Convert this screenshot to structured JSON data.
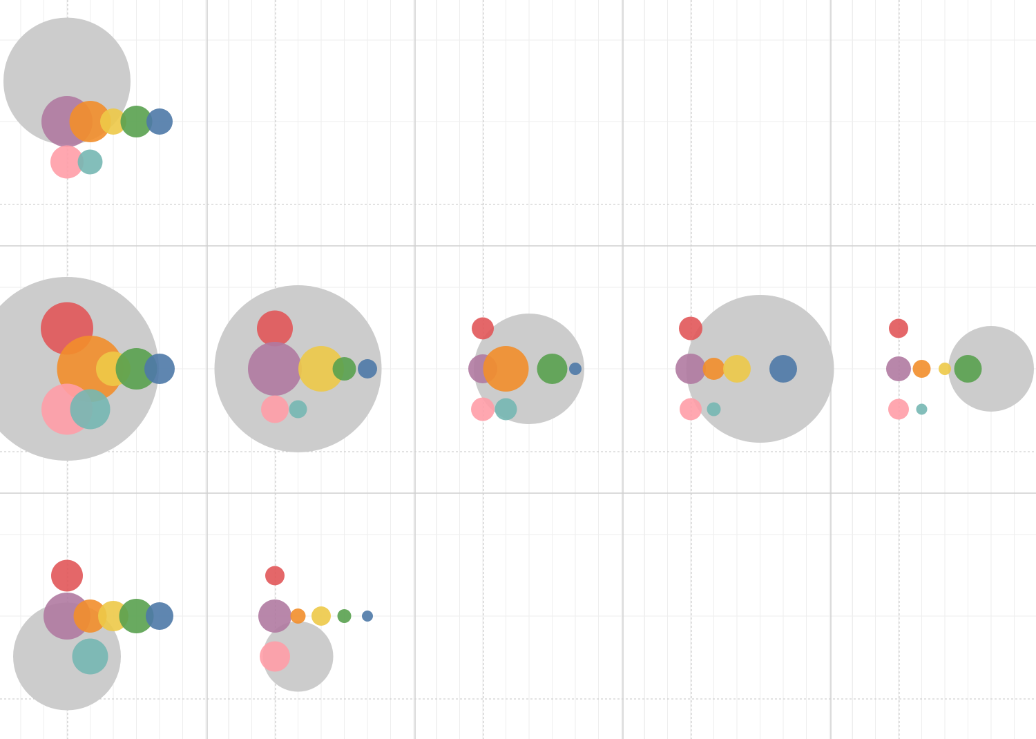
{
  "chart_data": {
    "type": "scatter",
    "subtype": "bubble-trellis",
    "grid_layout": {
      "rows": 3,
      "columns": 5
    },
    "colors": {
      "background": "#cccccc",
      "red": "#e15759",
      "purple": "#b07aa1",
      "orange": "#f28e2b",
      "yellow": "#edc948",
      "green": "#59a14f",
      "blue": "#4e79a7",
      "pink": "#ff9da7",
      "teal": "#76b7b2"
    },
    "series_order": [
      "background",
      "red",
      "purple",
      "orange",
      "yellow",
      "green",
      "blue",
      "pink",
      "teal"
    ],
    "panels": [
      {
        "row": 0,
        "col": 0,
        "bubbles": [
          {
            "series": "background",
            "x": 0,
            "y": 1,
            "size": 92
          },
          {
            "series": "purple",
            "x": 0,
            "y": 0,
            "size": 37
          },
          {
            "series": "orange",
            "x": 1,
            "y": 0,
            "size": 30
          },
          {
            "series": "yellow",
            "x": 2,
            "y": 0,
            "size": 19
          },
          {
            "series": "green",
            "x": 3,
            "y": 0,
            "size": 23
          },
          {
            "series": "blue",
            "x": 4,
            "y": 0,
            "size": 19
          },
          {
            "series": "pink",
            "x": 0,
            "y": -1,
            "size": 24
          },
          {
            "series": "teal",
            "x": 1,
            "y": -1,
            "size": 18
          }
        ]
      },
      {
        "row": 1,
        "col": 0,
        "bubbles": [
          {
            "series": "background",
            "x": 0,
            "y": 0,
            "size": 133
          },
          {
            "series": "red",
            "x": 0,
            "y": 1,
            "size": 38
          },
          {
            "series": "orange",
            "x": 1,
            "y": 0,
            "size": 48
          },
          {
            "series": "green",
            "x": 3,
            "y": 0,
            "size": 30
          },
          {
            "series": "blue",
            "x": 4,
            "y": 0,
            "size": 22
          },
          {
            "series": "yellow",
            "x": 2,
            "y": 0,
            "size": 25
          },
          {
            "series": "pink",
            "x": 0,
            "y": -1,
            "size": 37
          },
          {
            "series": "teal",
            "x": 1,
            "y": -1,
            "size": 29
          }
        ]
      },
      {
        "row": 1,
        "col": 1,
        "bubbles": [
          {
            "series": "background",
            "x": 1,
            "y": 0,
            "size": 121
          },
          {
            "series": "red",
            "x": 0,
            "y": 1,
            "size": 26
          },
          {
            "series": "purple",
            "x": 0,
            "y": 0,
            "size": 39
          },
          {
            "series": "green",
            "x": 3,
            "y": 0,
            "size": 17
          },
          {
            "series": "yellow",
            "x": 2,
            "y": 0,
            "size": 33
          },
          {
            "series": "blue",
            "x": 4,
            "y": 0,
            "size": 14
          },
          {
            "series": "pink",
            "x": 0,
            "y": -1,
            "size": 20
          },
          {
            "series": "teal",
            "x": 1,
            "y": -1,
            "size": 13
          }
        ]
      },
      {
        "row": 1,
        "col": 2,
        "bubbles": [
          {
            "series": "background",
            "x": 2,
            "y": 0,
            "size": 80
          },
          {
            "series": "red",
            "x": 0,
            "y": 1,
            "size": 16
          },
          {
            "series": "purple",
            "x": 0,
            "y": 0,
            "size": 21
          },
          {
            "series": "orange",
            "x": 1,
            "y": 0,
            "size": 33
          },
          {
            "series": "green",
            "x": 3,
            "y": 0,
            "size": 22
          },
          {
            "series": "blue",
            "x": 4,
            "y": 0,
            "size": 9
          },
          {
            "series": "pink",
            "x": 0,
            "y": -1,
            "size": 17
          },
          {
            "series": "teal",
            "x": 1,
            "y": -1,
            "size": 16
          }
        ]
      },
      {
        "row": 1,
        "col": 3,
        "bubbles": [
          {
            "series": "background",
            "x": 3,
            "y": 0,
            "size": 107
          },
          {
            "series": "red",
            "x": 0,
            "y": 1,
            "size": 17
          },
          {
            "series": "purple",
            "x": 0,
            "y": 0,
            "size": 22
          },
          {
            "series": "orange",
            "x": 1,
            "y": 0,
            "size": 16
          },
          {
            "series": "yellow",
            "x": 2,
            "y": 0,
            "size": 20
          },
          {
            "series": "blue",
            "x": 4,
            "y": 0,
            "size": 20
          },
          {
            "series": "pink",
            "x": 0,
            "y": -1,
            "size": 16
          },
          {
            "series": "teal",
            "x": 1,
            "y": -1,
            "size": 10
          }
        ]
      },
      {
        "row": 1,
        "col": 4,
        "bubbles": [
          {
            "series": "background",
            "x": 4,
            "y": 0,
            "size": 62
          },
          {
            "series": "red",
            "x": 0,
            "y": 1,
            "size": 14
          },
          {
            "series": "purple",
            "x": 0,
            "y": 0,
            "size": 18
          },
          {
            "series": "orange",
            "x": 1,
            "y": 0,
            "size": 13
          },
          {
            "series": "yellow",
            "x": 2,
            "y": 0,
            "size": 9
          },
          {
            "series": "green",
            "x": 3,
            "y": 0,
            "size": 20
          },
          {
            "series": "pink",
            "x": 0,
            "y": -1,
            "size": 15
          },
          {
            "series": "teal",
            "x": 1,
            "y": -1,
            "size": 8
          }
        ]
      },
      {
        "row": 2,
        "col": 0,
        "bubbles": [
          {
            "series": "background",
            "x": 0,
            "y": -1,
            "size": 78
          },
          {
            "series": "red",
            "x": 0,
            "y": 1,
            "size": 23
          },
          {
            "series": "purple",
            "x": 0,
            "y": 0,
            "size": 34
          },
          {
            "series": "orange",
            "x": 1,
            "y": 0,
            "size": 24
          },
          {
            "series": "yellow",
            "x": 2,
            "y": 0,
            "size": 22
          },
          {
            "series": "green",
            "x": 3,
            "y": 0,
            "size": 25
          },
          {
            "series": "blue",
            "x": 4,
            "y": 0,
            "size": 20
          },
          {
            "series": "teal",
            "x": 1,
            "y": -1,
            "size": 26
          }
        ]
      },
      {
        "row": 2,
        "col": 1,
        "bubbles": [
          {
            "series": "background",
            "x": 1,
            "y": -1,
            "size": 51
          },
          {
            "series": "red",
            "x": 0,
            "y": 1,
            "size": 14
          },
          {
            "series": "purple",
            "x": 0,
            "y": 0,
            "size": 24
          },
          {
            "series": "orange",
            "x": 1,
            "y": 0,
            "size": 11
          },
          {
            "series": "yellow",
            "x": 2,
            "y": 0,
            "size": 14
          },
          {
            "series": "green",
            "x": 3,
            "y": 0,
            "size": 10
          },
          {
            "series": "blue",
            "x": 4,
            "y": 0,
            "size": 8
          },
          {
            "series": "pink",
            "x": 0,
            "y": -1,
            "size": 22
          }
        ]
      }
    ]
  }
}
